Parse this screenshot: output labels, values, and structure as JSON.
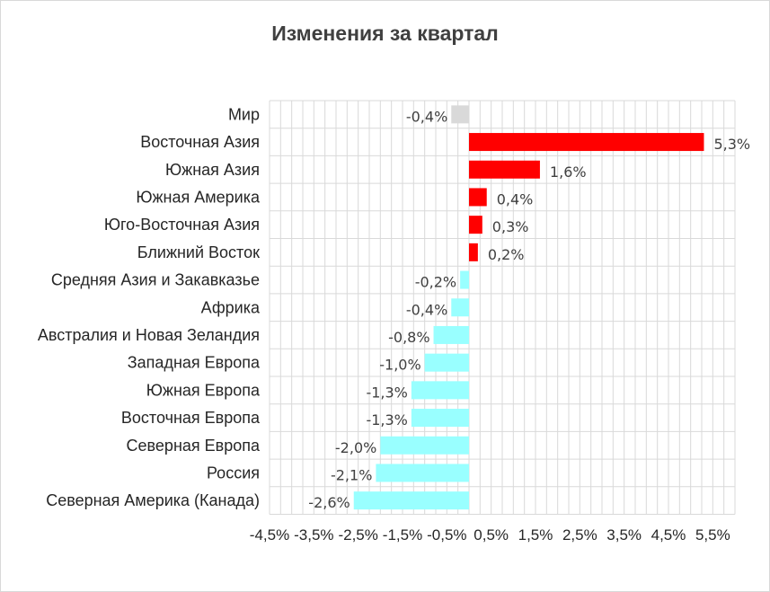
{
  "chart_data": {
    "type": "bar",
    "orientation": "horizontal",
    "title": "Изменения за квартал",
    "xlabel": "",
    "ylabel": "",
    "categories": [
      "Мир",
      "Восточная Азия",
      "Южная Азия",
      "Южная Америка",
      "Юго-Восточная Азия",
      "Ближний Восток",
      "Средняя Азия и Закавказье",
      "Африка",
      "Австралия и Новая Зеландия",
      "Западная Европа",
      "Южная Европа",
      "Восточная Европа",
      "Северная Европа",
      "Россия",
      "Северная Америка (Канада)"
    ],
    "values": [
      -0.4,
      5.3,
      1.6,
      0.4,
      0.3,
      0.2,
      -0.2,
      -0.4,
      -0.8,
      -1.0,
      -1.3,
      -1.3,
      -2.0,
      -2.1,
      -2.6
    ],
    "data_labels": [
      "-0,4%",
      "5,3%",
      "1,6%",
      "0,4%",
      "0,3%",
      "0,2%",
      "-0,2%",
      "-0,4%",
      "-0,8%",
      "-1,0%",
      "-1,3%",
      "-1,3%",
      "-2,0%",
      "-2,1%",
      "-2,6%"
    ],
    "xlim": [
      -4.5,
      6.0
    ],
    "x_ticks": [
      "-4,5%",
      "-3,5%",
      "-2,5%",
      "-1,5%",
      "-0,5%",
      "0,5%",
      "1,5%",
      "2,5%",
      "3,5%",
      "4,5%",
      "5,5%"
    ],
    "x_tick_values": [
      -4.5,
      -3.5,
      -2.5,
      -1.5,
      -0.5,
      0.5,
      1.5,
      2.5,
      3.5,
      4.5,
      5.5
    ],
    "grid": true,
    "legend": "none",
    "colors": {
      "world": "#d9d9d9",
      "positive": "#ff0000",
      "negative": "#99ffff",
      "grid": "#d9d9d9"
    }
  }
}
